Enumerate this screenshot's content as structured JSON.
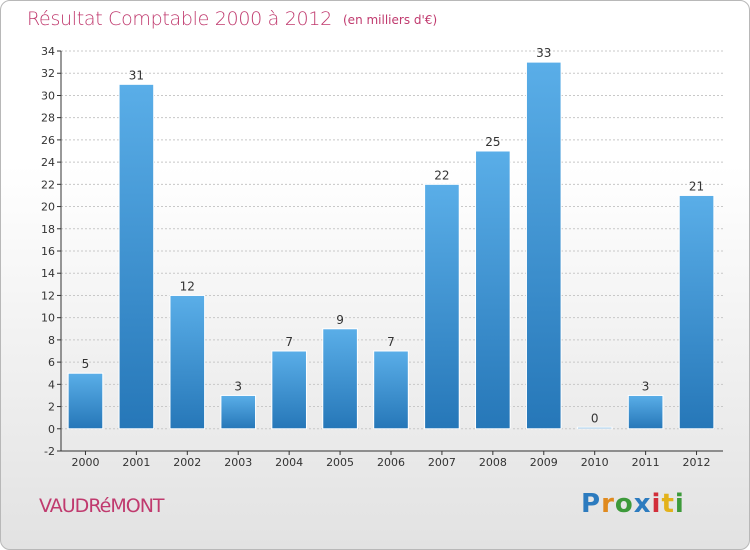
{
  "header": {
    "title": "Résultat Comptable 2000 à 2012",
    "subtitle": "(en milliers d'€)"
  },
  "footer": {
    "commune": "VAUDRéMONT",
    "logo_text": "Proxiti"
  },
  "colors": {
    "bar_top": "#5aaee8",
    "bar_bottom": "#2677b8",
    "title": "#c03a6e",
    "axis": "#333333",
    "grid": "#c8c8c8"
  },
  "chart_data": {
    "type": "bar",
    "categories": [
      "2000",
      "2001",
      "2002",
      "2003",
      "2004",
      "2005",
      "2006",
      "2007",
      "2008",
      "2009",
      "2010",
      "2011",
      "2012"
    ],
    "values": [
      5,
      31,
      12,
      3,
      7,
      9,
      7,
      22,
      25,
      33,
      0,
      3,
      21
    ],
    "data_labels": [
      "5",
      "31",
      "12",
      "3",
      "7",
      "9",
      "7",
      "22",
      "25",
      "33",
      "0",
      "3",
      "21"
    ],
    "ylim": [
      -2,
      34
    ],
    "yticks": [
      -2,
      0,
      2,
      4,
      6,
      8,
      10,
      12,
      14,
      16,
      18,
      20,
      22,
      24,
      26,
      28,
      30,
      32,
      34
    ],
    "grid": "horizontal"
  }
}
